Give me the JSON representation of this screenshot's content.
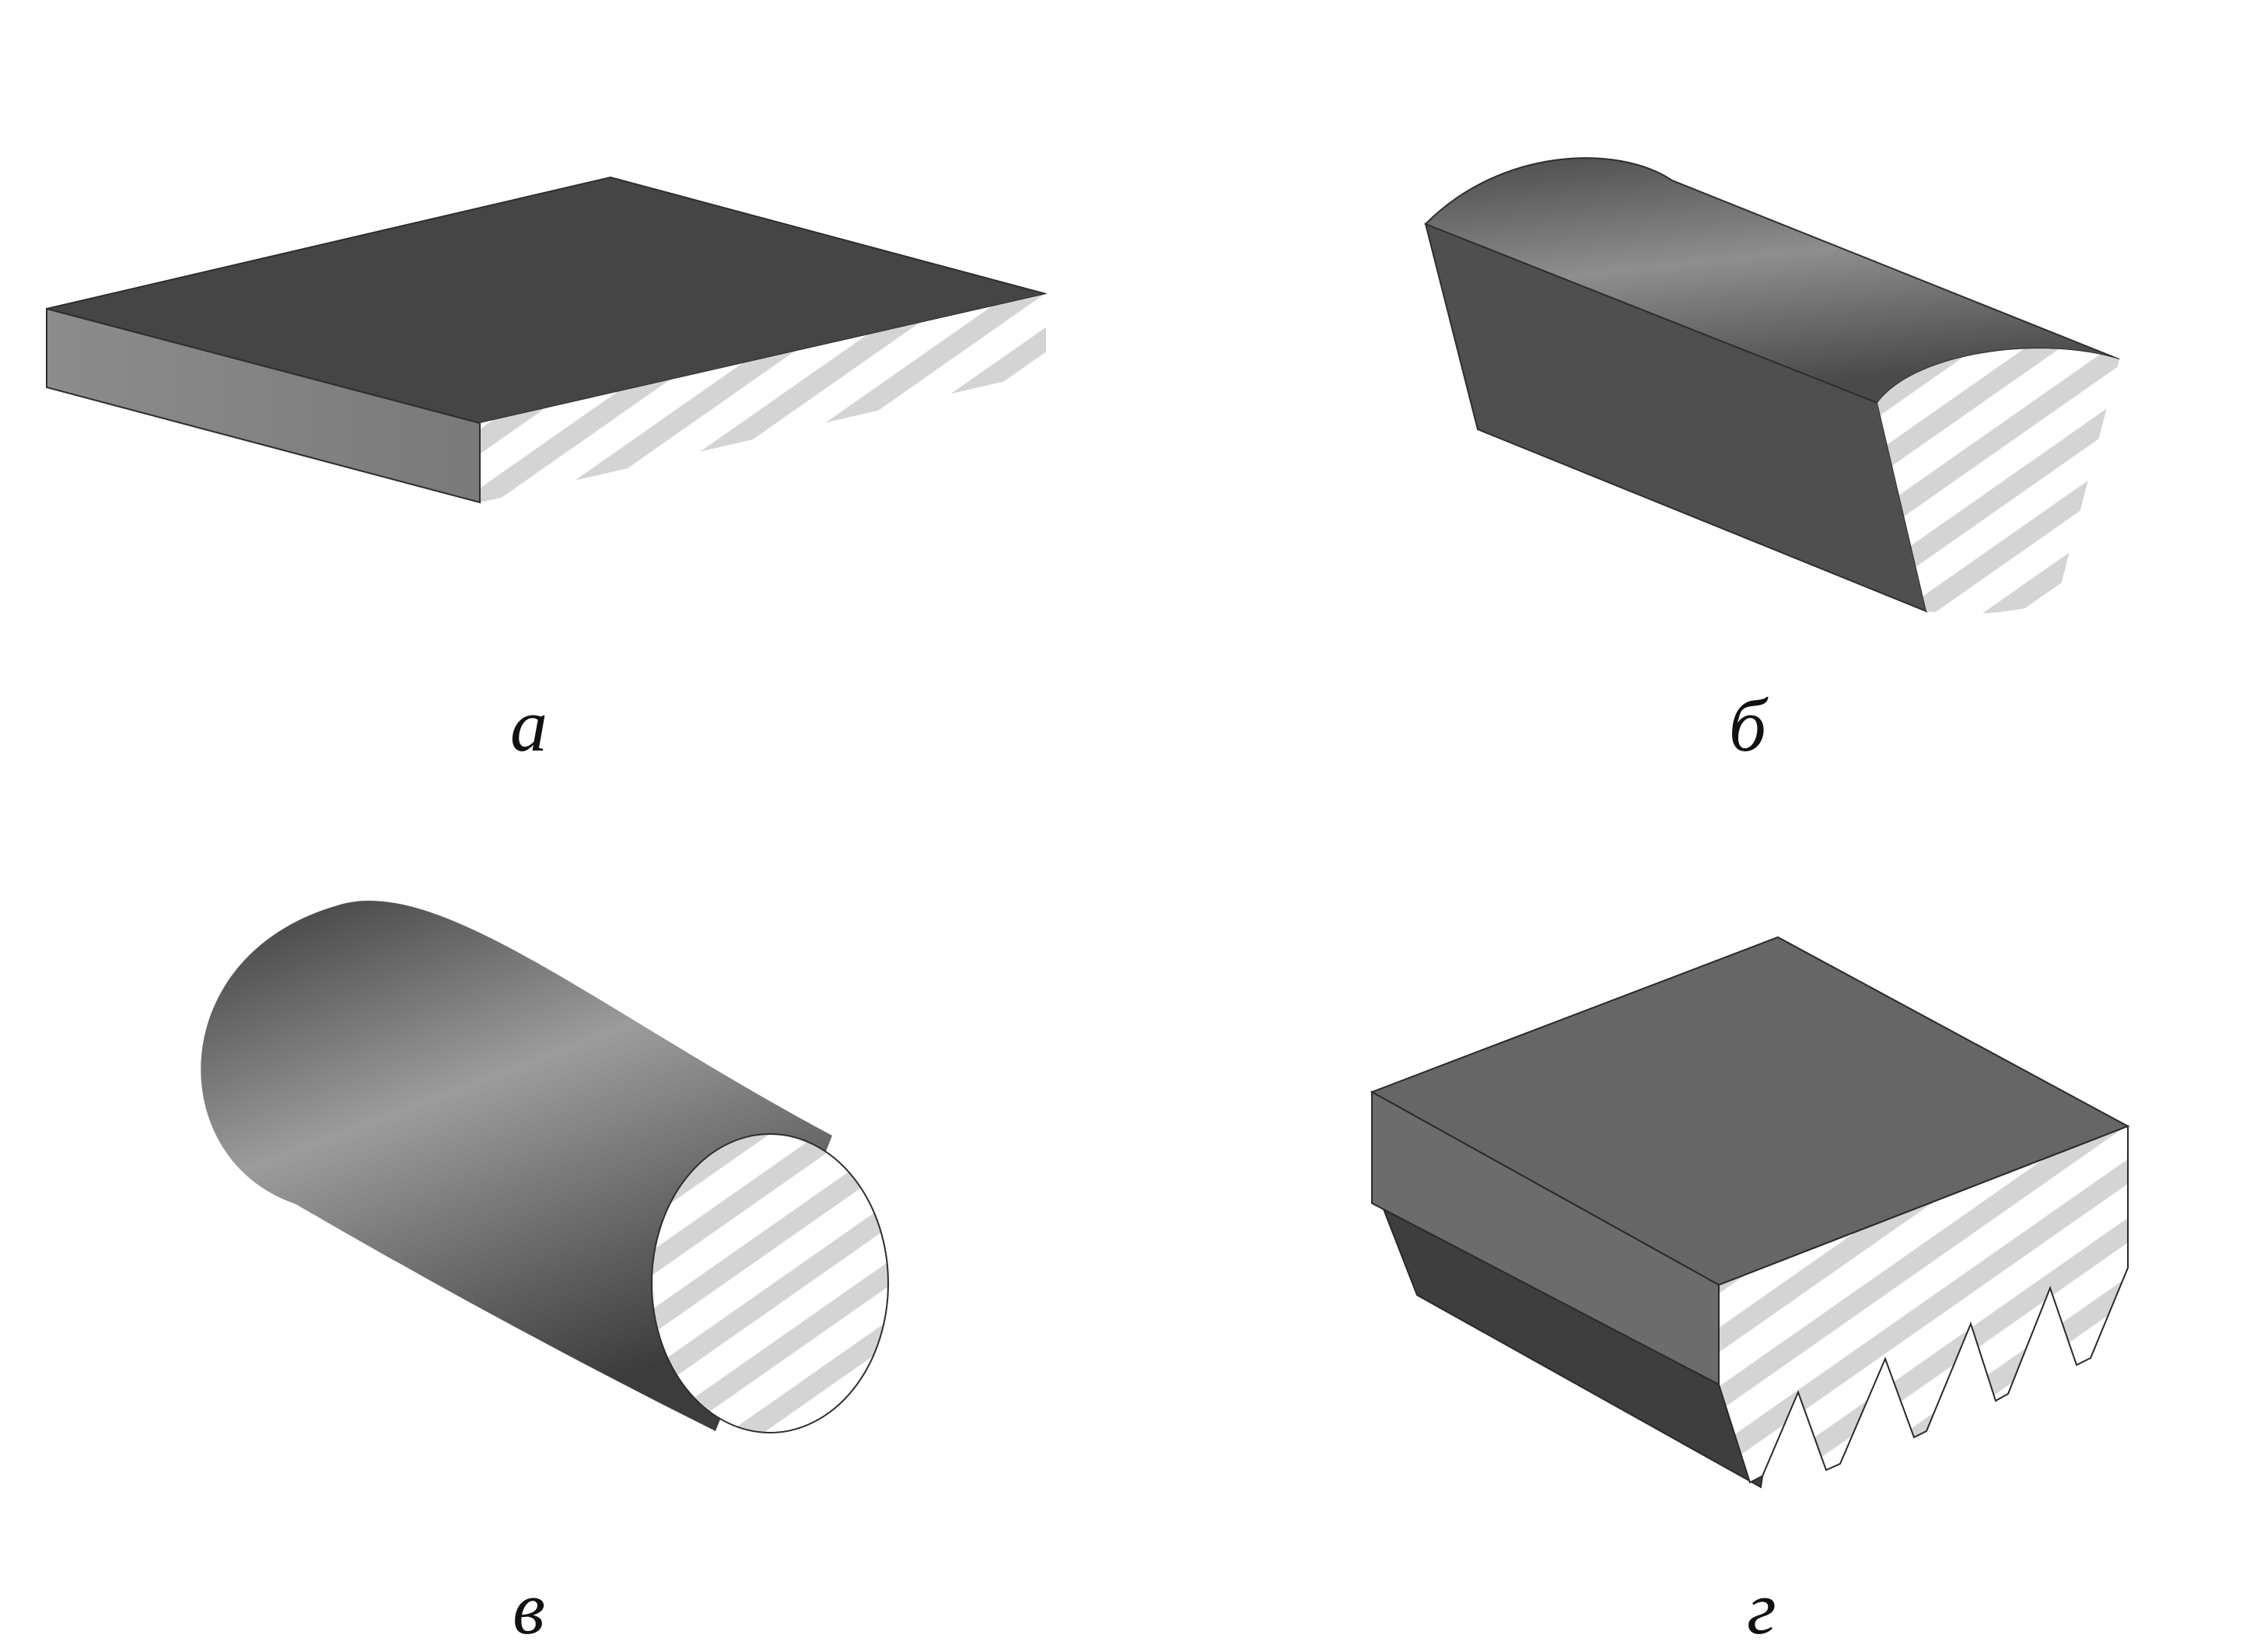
{
  "captions": {
    "a": "а",
    "b": "б",
    "v": "в",
    "g": "г"
  },
  "colors": {
    "background": "#ffffff",
    "hatch": "#d4d4d4",
    "top_face": "#454545",
    "side_face_light": "#8a8a8a",
    "dark_face": "#4a4a4a",
    "edge": "#2a2a2a"
  },
  "parts": [
    {
      "id": "a",
      "shape": "flat-belt",
      "icon": "flat-belt-section"
    },
    {
      "id": "b",
      "shape": "v-belt",
      "icon": "v-belt-section"
    },
    {
      "id": "v",
      "shape": "round-belt",
      "icon": "round-belt-section"
    },
    {
      "id": "g",
      "shape": "poly-v-belt",
      "icon": "poly-v-belt-section"
    }
  ]
}
